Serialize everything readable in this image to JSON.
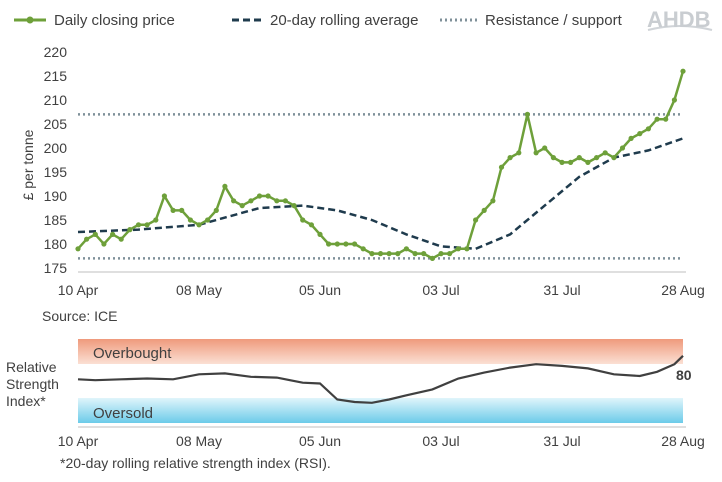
{
  "logo_text": "AHDB",
  "source": "Source: ICE",
  "footnote": "*20-day rolling relative strength index (RSI).",
  "colors": {
    "price": "#6ea03a",
    "average": "#1f3b4d",
    "resistance": "#7f9099",
    "rsi": "#404040",
    "overbought_band": "#f2a58a",
    "oversold_band": "#8fd6ee"
  },
  "chart_data": [
    {
      "type": "line",
      "ylabel": "£ per tonne",
      "ylim": [
        175,
        220
      ],
      "yticks": [
        175,
        180,
        185,
        190,
        195,
        200,
        205,
        210,
        215,
        220
      ],
      "xlim": [
        "2023-04-10",
        "2023-08-28"
      ],
      "xticks": [
        "10 Apr",
        "08 May",
        "05 Jun",
        "03 Jul",
        "31 Jul",
        "28 Aug"
      ],
      "legend": "top",
      "grid": false,
      "series": [
        {
          "name": "Daily closing price",
          "style": "solid-markers",
          "x": [
            "2023-04-10",
            "2023-04-12",
            "2023-04-14",
            "2023-04-16",
            "2023-04-18",
            "2023-04-20",
            "2023-04-22",
            "2023-04-24",
            "2023-04-26",
            "2023-04-28",
            "2023-04-30",
            "2023-05-02",
            "2023-05-04",
            "2023-05-06",
            "2023-05-08",
            "2023-05-10",
            "2023-05-12",
            "2023-05-14",
            "2023-05-16",
            "2023-05-18",
            "2023-05-20",
            "2023-05-22",
            "2023-05-24",
            "2023-05-26",
            "2023-05-28",
            "2023-05-30",
            "2023-06-01",
            "2023-06-03",
            "2023-06-05",
            "2023-06-07",
            "2023-06-09",
            "2023-06-11",
            "2023-06-13",
            "2023-06-15",
            "2023-06-17",
            "2023-06-19",
            "2023-06-21",
            "2023-06-23",
            "2023-06-25",
            "2023-06-27",
            "2023-06-29",
            "2023-07-01",
            "2023-07-03",
            "2023-07-05",
            "2023-07-07",
            "2023-07-09",
            "2023-07-11",
            "2023-07-13",
            "2023-07-15",
            "2023-07-17",
            "2023-07-19",
            "2023-07-21",
            "2023-07-23",
            "2023-07-25",
            "2023-07-27",
            "2023-07-29",
            "2023-07-31",
            "2023-08-02",
            "2023-08-04",
            "2023-08-06",
            "2023-08-08",
            "2023-08-10",
            "2023-08-12",
            "2023-08-14",
            "2023-08-16",
            "2023-08-18",
            "2023-08-20",
            "2023-08-22",
            "2023-08-24",
            "2023-08-26",
            "2023-08-28"
          ],
          "values": [
            179,
            181,
            182,
            180,
            182,
            181,
            183,
            184,
            184,
            185,
            190,
            187,
            187,
            185,
            184,
            185,
            187,
            192,
            189,
            188,
            189,
            190,
            190,
            189,
            189,
            188,
            185,
            184,
            182,
            180,
            180,
            180,
            180,
            179,
            178,
            178,
            178,
            178,
            179,
            178,
            178,
            177,
            178,
            178,
            179,
            179,
            185,
            187,
            189,
            196,
            198,
            199,
            207,
            199,
            200,
            198,
            197,
            197,
            198,
            197,
            198,
            199,
            198,
            200,
            202,
            203,
            204,
            206,
            206,
            210,
            216
          ]
        },
        {
          "name": "20-day rolling average",
          "style": "dashed",
          "x": [
            "2023-04-10",
            "2023-04-24",
            "2023-05-08",
            "2023-05-22",
            "2023-06-01",
            "2023-06-09",
            "2023-06-17",
            "2023-06-25",
            "2023-07-03",
            "2023-07-11",
            "2023-07-19",
            "2023-07-27",
            "2023-08-04",
            "2023-08-12",
            "2023-08-20",
            "2023-08-28"
          ],
          "values": [
            182.5,
            183.0,
            184.0,
            187.5,
            188.0,
            187.0,
            185.0,
            182.0,
            179.5,
            179.0,
            182.0,
            188.0,
            194.0,
            198.0,
            199.5,
            202.0
          ]
        },
        {
          "name": "Resistance / support",
          "style": "dotted",
          "levels": [
            207,
            177
          ]
        }
      ]
    },
    {
      "type": "line",
      "ylabel": "Relative Strength Index*",
      "ylim": [
        0,
        100
      ],
      "xlim": [
        "2023-04-10",
        "2023-08-28"
      ],
      "xticks": [
        "10 Apr",
        "08 May",
        "05 Jun",
        "03 Jul",
        "31 Jul",
        "28 Aug"
      ],
      "bands": [
        {
          "name": "Overbought",
          "range": [
            70,
            100
          ]
        },
        {
          "name": "Oversold",
          "range": [
            0,
            30
          ]
        }
      ],
      "last_value_label": "80",
      "series": [
        {
          "x": [
            "2023-04-10",
            "2023-04-14",
            "2023-04-20",
            "2023-04-26",
            "2023-05-02",
            "2023-05-08",
            "2023-05-14",
            "2023-05-20",
            "2023-05-26",
            "2023-06-01",
            "2023-06-05",
            "2023-06-09",
            "2023-06-13",
            "2023-06-17",
            "2023-06-21",
            "2023-06-25",
            "2023-07-01",
            "2023-07-07",
            "2023-07-13",
            "2023-07-19",
            "2023-07-25",
            "2023-07-31",
            "2023-08-06",
            "2023-08-12",
            "2023-08-18",
            "2023-08-22",
            "2023-08-26",
            "2023-08-28"
          ],
          "values": [
            52,
            51,
            52,
            53,
            52,
            58,
            59,
            55,
            54,
            48,
            47,
            28,
            25,
            24,
            28,
            33,
            40,
            53,
            60,
            66,
            70,
            68,
            65,
            58,
            56,
            61,
            70,
            80
          ]
        }
      ]
    }
  ]
}
